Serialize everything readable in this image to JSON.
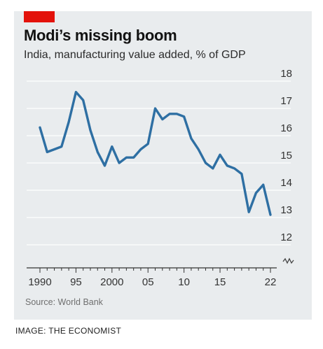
{
  "header": {
    "title": "Modi’s missing boom",
    "subtitle": "India, manufacturing value added, % of GDP"
  },
  "source": "Source: World Bank",
  "credit": "IMAGE: THE ECONOMIST",
  "colors": {
    "line": "#2e6fa3",
    "tag": "#e3120b",
    "background": "#e9ecee",
    "grid": "#ffffff"
  },
  "chart_data": {
    "type": "line",
    "title": "Modi’s missing boom",
    "subtitle": "India, manufacturing value added, % of GDP",
    "ylim": [
      12,
      18
    ],
    "y_ticks": [
      "12",
      "13",
      "14",
      "15",
      "16",
      "17",
      "18"
    ],
    "y_axis_side": "right",
    "y_axis_break": true,
    "x_ticks": [
      "1990",
      "95",
      "2000",
      "05",
      "10",
      "15",
      "22"
    ],
    "x_tick_years": [
      1990,
      1995,
      2000,
      2005,
      2010,
      2015,
      2022
    ],
    "grid": true,
    "series": [
      {
        "x": [
          1990,
          1991,
          1992,
          1993,
          1994,
          1995,
          1996,
          1997,
          1998,
          1999,
          2000,
          2001,
          2002,
          2003,
          2004,
          2005,
          2006,
          2007,
          2008,
          2009,
          2010,
          2011,
          2012,
          2013,
          2014,
          2015,
          2016,
          2017,
          2018,
          2019,
          2020,
          2021,
          2022
        ],
        "values": [
          16.3,
          15.4,
          15.5,
          15.6,
          16.5,
          17.6,
          17.3,
          16.2,
          15.4,
          14.9,
          15.6,
          15.0,
          15.2,
          15.2,
          15.5,
          15.7,
          17.0,
          16.6,
          16.8,
          16.8,
          16.7,
          15.9,
          15.5,
          15.0,
          14.8,
          15.3,
          14.9,
          14.8,
          14.6,
          13.2,
          13.9,
          14.2,
          13.1
        ]
      }
    ]
  }
}
